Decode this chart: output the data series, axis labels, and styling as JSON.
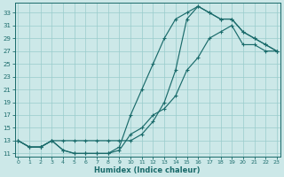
{
  "xlabel": "Humidex (Indice chaleur)",
  "bg_color": "#cce8e8",
  "grid_color": "#99cccc",
  "line_color": "#1a6b6b",
  "xlim": [
    -0.3,
    23.3
  ],
  "ylim": [
    10.5,
    34.5
  ],
  "xticks": [
    0,
    1,
    2,
    3,
    4,
    5,
    6,
    7,
    8,
    9,
    10,
    11,
    12,
    13,
    14,
    15,
    16,
    17,
    18,
    19,
    20,
    21,
    22,
    23
  ],
  "yticks": [
    11,
    13,
    15,
    17,
    19,
    21,
    23,
    25,
    27,
    29,
    31,
    33
  ],
  "curve1_x": [
    0,
    1,
    2,
    3,
    4,
    5,
    6,
    7,
    8,
    9,
    10,
    11,
    12,
    13,
    14,
    15,
    16,
    17,
    18,
    19,
    20,
    21,
    22,
    23
  ],
  "curve1_y": [
    13,
    12,
    12,
    13,
    13,
    13,
    13,
    13,
    13,
    13,
    13,
    14,
    16,
    19,
    24,
    32,
    34,
    33,
    32,
    32,
    30,
    29,
    28,
    27
  ],
  "curve2_x": [
    0,
    1,
    2,
    3,
    4,
    5,
    6,
    7,
    8,
    9,
    10,
    11,
    12,
    13,
    14,
    15,
    16,
    17,
    18,
    19,
    20,
    21,
    22,
    23
  ],
  "curve2_y": [
    13,
    12,
    12,
    13,
    11.5,
    11,
    11,
    11,
    11,
    11.5,
    14,
    15,
    17,
    18,
    20,
    24,
    26,
    29,
    30,
    31,
    28,
    28,
    27,
    27
  ],
  "curve3_x": [
    0,
    1,
    2,
    3,
    4,
    5,
    6,
    7,
    8,
    9,
    10,
    11,
    12,
    13,
    14,
    15,
    16,
    17,
    18,
    19,
    20,
    21,
    22,
    23
  ],
  "curve3_y": [
    13,
    12,
    12,
    13,
    11.5,
    11,
    11,
    11,
    11,
    12,
    17,
    21,
    25,
    29,
    32,
    33,
    34,
    33,
    32,
    32,
    30,
    29,
    28,
    27
  ]
}
